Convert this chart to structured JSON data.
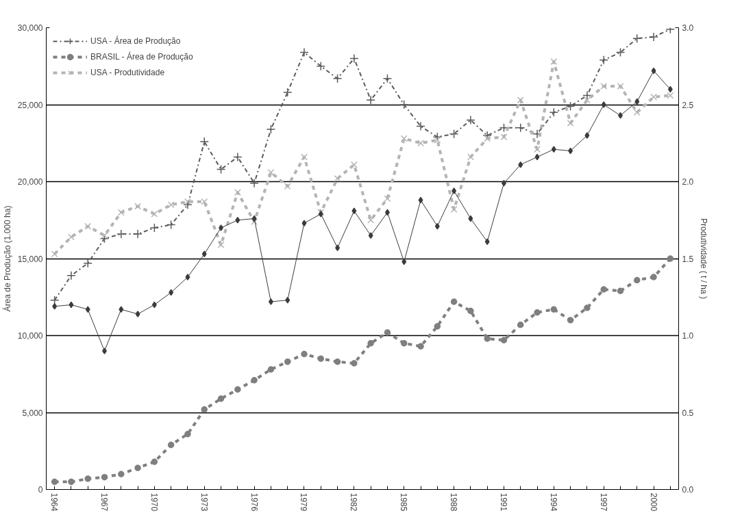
{
  "chart_data": {
    "type": "line",
    "ylabel": "Área de Produção (1.000 ha)",
    "y2label": "Produtividade ( t / ha )",
    "x": [
      1964,
      1965,
      1966,
      1967,
      1968,
      1969,
      1970,
      1971,
      1972,
      1973,
      1974,
      1975,
      1976,
      1977,
      1978,
      1979,
      1980,
      1981,
      1982,
      1983,
      1984,
      1985,
      1986,
      1987,
      1988,
      1989,
      1990,
      1991,
      1992,
      1993,
      1994,
      1995,
      1996,
      1997,
      1998,
      1999,
      2000,
      2001
    ],
    "series": [
      {
        "name": "USA - Área de Produção",
        "color": "#5a5a5a",
        "marker": "cross",
        "line_style": "dashdot",
        "values": [
          12300,
          13900,
          14700,
          16300,
          16600,
          16600,
          17000,
          17200,
          18500,
          22600,
          20800,
          21600,
          19900,
          23400,
          25800,
          28400,
          27500,
          26700,
          28000,
          25300,
          26700,
          25000,
          23600,
          22900,
          23100,
          24000,
          23000,
          23500,
          23500,
          23100,
          24500,
          24900,
          25600,
          27900,
          28400,
          29300,
          29400,
          29900
        ]
      },
      {
        "name": "BRASIL - Área de Produção",
        "color": "#7f7f7f",
        "marker": "circle",
        "line_style": "dashed",
        "values": [
          500,
          500,
          700,
          800,
          1000,
          1400,
          1800,
          2900,
          3600,
          5200,
          5900,
          6500,
          7100,
          7800,
          8300,
          8800,
          8500,
          8300,
          8200,
          9500,
          10200,
          9500,
          9300,
          10600,
          12200,
          11600,
          9800,
          9700,
          10700,
          11500,
          11700,
          11000,
          11800,
          13000,
          12900,
          13600,
          13800,
          15000
        ]
      },
      {
        "name": "USA - Produtividade",
        "color": "#b4b4b4",
        "marker": "x",
        "line_style": "dashed",
        "axis": "y2",
        "values": [
          1.53,
          1.64,
          1.71,
          1.65,
          1.8,
          1.84,
          1.79,
          1.85,
          1.87,
          1.87,
          1.59,
          1.93,
          1.74,
          2.06,
          1.97,
          2.16,
          1.8,
          2.02,
          2.11,
          1.75,
          1.89,
          2.28,
          2.25,
          2.27,
          1.82,
          2.16,
          2.28,
          2.29,
          2.53,
          2.21,
          2.78,
          2.38,
          2.53,
          2.62,
          2.62,
          2.45,
          2.55,
          2.56
        ]
      },
      {
        "color": "#3c3c3c",
        "marker": "diamond",
        "line_style": "solid",
        "axis": "y2",
        "values": [
          1.19,
          1.2,
          1.17,
          0.9,
          1.17,
          1.14,
          1.2,
          1.28,
          1.38,
          1.53,
          1.7,
          1.75,
          1.76,
          1.22,
          1.23,
          1.73,
          1.79,
          1.57,
          1.81,
          1.65,
          1.8,
          1.48,
          1.88,
          1.71,
          1.94,
          1.76,
          1.61,
          1.99,
          2.11,
          2.16,
          2.21,
          2.2,
          2.3,
          2.5,
          2.43,
          2.52,
          2.72,
          2.6
        ]
      }
    ],
    "xlim": [
      1963.5,
      2001.5
    ],
    "xticks": [
      1964,
      {
        "value": 1965,
        "label": null
      },
      {
        "value": 1966,
        "label": null
      },
      1967,
      {
        "value": 1968,
        "label": null
      },
      {
        "value": 1969,
        "label": null
      },
      1970,
      {
        "value": 1971,
        "label": null
      },
      {
        "value": 1972,
        "label": null
      },
      1973,
      {
        "value": 1974,
        "label": null
      },
      {
        "value": 1975,
        "label": null
      },
      1976,
      {
        "value": 1977,
        "label": null
      },
      {
        "value": 1978,
        "label": null
      },
      1979,
      {
        "value": 1980,
        "label": null
      },
      {
        "value": 1981,
        "label": null
      },
      1982,
      {
        "value": 1983,
        "label": null
      },
      {
        "value": 1984,
        "label": null
      },
      1985,
      {
        "value": 1986,
        "label": null
      },
      {
        "value": 1987,
        "label": null
      },
      1988,
      {
        "value": 1989,
        "label": null
      },
      {
        "value": 1990,
        "label": null
      },
      1991,
      {
        "value": 1992,
        "label": null
      },
      {
        "value": 1993,
        "label": null
      },
      1994,
      {
        "value": 1995,
        "label": null
      },
      {
        "value": 1996,
        "label": null
      },
      1997,
      {
        "value": 1998,
        "label": null
      },
      {
        "value": 1999,
        "label": null
      },
      2000,
      {
        "value": 2001,
        "label": null
      }
    ],
    "ylim": [
      0,
      30000
    ],
    "yticks": [
      0,
      {
        "value": 5000,
        "label": "5,000"
      },
      {
        "value": 10000,
        "label": "10,000"
      },
      {
        "value": 15000,
        "label": "15,000"
      },
      {
        "value": 20000,
        "label": "20,000"
      },
      {
        "value": 25000,
        "label": "25,000"
      },
      {
        "value": 30000,
        "label": "30,000"
      }
    ],
    "y2lim": [
      0,
      3
    ],
    "y2ticks": [
      {
        "value": 0,
        "label": "0.0"
      },
      {
        "value": 0.5,
        "label": "0.5"
      },
      {
        "value": 1,
        "label": "1.0"
      },
      {
        "value": 1.5,
        "label": "1.5"
      },
      {
        "value": 2,
        "label": "2.0"
      },
      {
        "value": 2.5,
        "label": "2.5"
      },
      {
        "value": 3,
        "label": "3.0"
      }
    ],
    "grid": "y",
    "legend": "top left"
  }
}
